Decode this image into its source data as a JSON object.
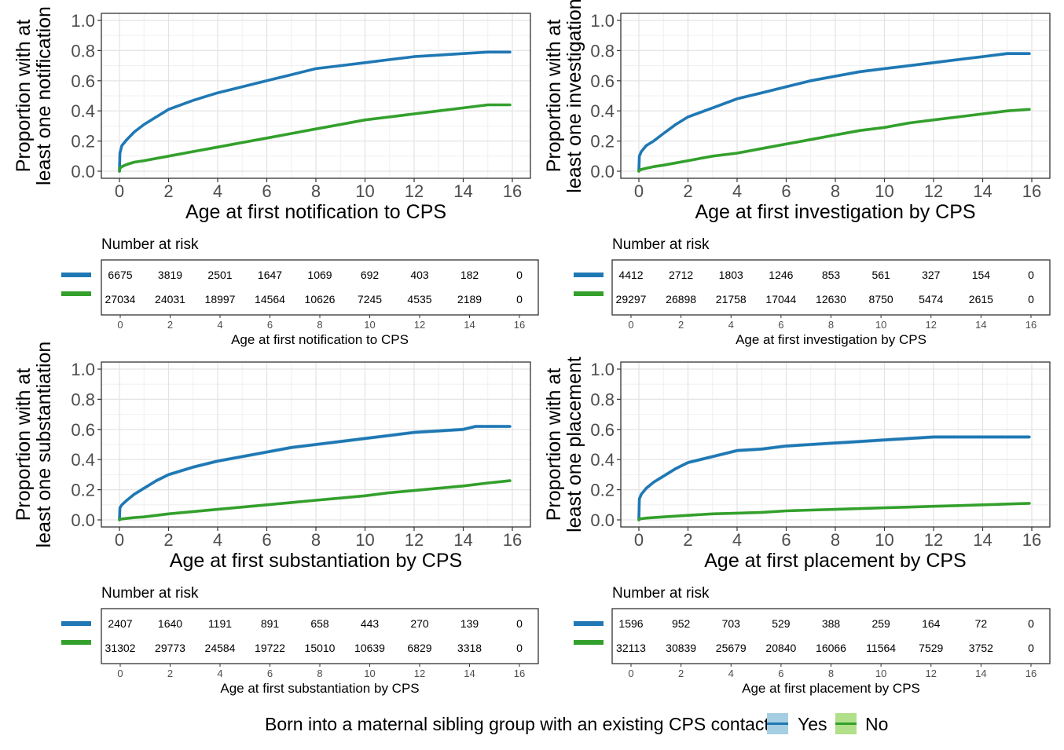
{
  "colors": {
    "yes": "#1f78b4",
    "yes_band": "#a6cee3",
    "no": "#33a02c",
    "no_band": "#b2df8a"
  },
  "legend": {
    "title": "Born into a maternal sibling group with an existing CPS contact",
    "yes": "Yes",
    "no": "No"
  },
  "chart_data": [
    {
      "type": "line",
      "xlabel": "Age at first notification to CPS",
      "ylabel": [
        "Proportion with at",
        "least one notification"
      ],
      "xlim": [
        0,
        16
      ],
      "ylim": [
        0,
        1
      ],
      "xticks": [
        0,
        2,
        4,
        6,
        8,
        10,
        12,
        14,
        16
      ],
      "yticks": [
        "0.0",
        "0.2",
        "0.4",
        "0.6",
        "0.8",
        "1.0"
      ],
      "series": [
        {
          "name": "Yes",
          "ci": 0.008,
          "x": [
            0,
            0.02,
            0.1,
            0.3,
            0.6,
            1,
            1.5,
            2,
            3,
            4,
            5,
            6,
            7,
            8,
            9,
            10,
            11,
            12,
            13,
            14,
            15,
            15.9
          ],
          "y": [
            0,
            0.12,
            0.17,
            0.21,
            0.26,
            0.31,
            0.36,
            0.41,
            0.47,
            0.52,
            0.56,
            0.6,
            0.64,
            0.68,
            0.7,
            0.72,
            0.74,
            0.76,
            0.77,
            0.78,
            0.79,
            0.79
          ]
        },
        {
          "name": "No",
          "ci": 0.005,
          "x": [
            0,
            0.02,
            0.1,
            0.3,
            0.6,
            1,
            2,
            3,
            4,
            5,
            6,
            7,
            8,
            9,
            10,
            11,
            12,
            13,
            14,
            15,
            15.9
          ],
          "y": [
            0,
            0.02,
            0.03,
            0.045,
            0.06,
            0.07,
            0.1,
            0.13,
            0.16,
            0.19,
            0.22,
            0.25,
            0.28,
            0.31,
            0.34,
            0.36,
            0.38,
            0.4,
            0.42,
            0.44,
            0.44
          ]
        }
      ],
      "risk_table": {
        "title": "Number at risk",
        "times": [
          0,
          2,
          4,
          6,
          8,
          10,
          12,
          14,
          16
        ],
        "yes": [
          6675,
          3819,
          2501,
          1647,
          1069,
          692,
          403,
          182,
          0
        ],
        "no": [
          27034,
          24031,
          18997,
          14564,
          10626,
          7245,
          4535,
          2189,
          0
        ],
        "xlabel": "Age at first notification to CPS"
      }
    },
    {
      "type": "line",
      "xlabel": "Age at first investigation by CPS",
      "ylabel": [
        "Proportion with at",
        "least one investigation"
      ],
      "xlim": [
        0,
        16
      ],
      "ylim": [
        0,
        1
      ],
      "xticks": [
        0,
        2,
        4,
        6,
        8,
        10,
        12,
        14,
        16
      ],
      "yticks": [
        "0.0",
        "0.2",
        "0.4",
        "0.6",
        "0.8",
        "1.0"
      ],
      "series": [
        {
          "name": "Yes",
          "ci": 0.01,
          "x": [
            0,
            0.02,
            0.1,
            0.3,
            0.6,
            1,
            1.5,
            2,
            3,
            4,
            5,
            6,
            7,
            8,
            9,
            10,
            11,
            12,
            13,
            14,
            15,
            15.9
          ],
          "y": [
            0,
            0.1,
            0.13,
            0.17,
            0.2,
            0.25,
            0.31,
            0.36,
            0.42,
            0.48,
            0.52,
            0.56,
            0.6,
            0.63,
            0.66,
            0.68,
            0.7,
            0.72,
            0.74,
            0.76,
            0.78,
            0.78
          ]
        },
        {
          "name": "No",
          "ci": 0.005,
          "x": [
            0,
            0.02,
            0.1,
            0.3,
            0.6,
            1,
            2,
            3,
            4,
            5,
            6,
            7,
            8,
            9,
            10,
            11,
            12,
            13,
            14,
            15,
            15.9
          ],
          "y": [
            0,
            0.005,
            0.012,
            0.02,
            0.03,
            0.04,
            0.07,
            0.1,
            0.12,
            0.15,
            0.18,
            0.21,
            0.24,
            0.27,
            0.29,
            0.32,
            0.34,
            0.36,
            0.38,
            0.4,
            0.41
          ]
        }
      ],
      "risk_table": {
        "title": "Number at risk",
        "times": [
          0,
          2,
          4,
          6,
          8,
          10,
          12,
          14,
          16
        ],
        "yes": [
          4412,
          2712,
          1803,
          1246,
          853,
          561,
          327,
          154,
          0
        ],
        "no": [
          29297,
          26898,
          21758,
          17044,
          12630,
          8750,
          5474,
          2615,
          0
        ],
        "xlabel": "Age at first investigation by CPS"
      }
    },
    {
      "type": "line",
      "xlabel": "Age at first substantiation by CPS",
      "ylabel": [
        "Proportion with at",
        "least one substantiation"
      ],
      "xlim": [
        0,
        16
      ],
      "ylim": [
        0,
        1
      ],
      "xticks": [
        0,
        2,
        4,
        6,
        8,
        10,
        12,
        14,
        16
      ],
      "yticks": [
        "0.0",
        "0.2",
        "0.4",
        "0.6",
        "0.8",
        "1.0"
      ],
      "series": [
        {
          "name": "Yes",
          "ci": 0.012,
          "x": [
            0,
            0.02,
            0.1,
            0.3,
            0.6,
            1,
            1.5,
            2,
            3,
            4,
            5,
            6,
            7,
            8,
            9,
            10,
            11,
            12,
            13,
            14,
            14.5,
            15,
            15.9
          ],
          "y": [
            0,
            0.08,
            0.1,
            0.13,
            0.17,
            0.21,
            0.26,
            0.3,
            0.35,
            0.39,
            0.42,
            0.45,
            0.48,
            0.5,
            0.52,
            0.54,
            0.56,
            0.58,
            0.59,
            0.6,
            0.62,
            0.62,
            0.62
          ]
        },
        {
          "name": "No",
          "ci": 0.004,
          "x": [
            0,
            0.02,
            0.1,
            0.3,
            0.6,
            1,
            2,
            3,
            4,
            5,
            6,
            7,
            8,
            9,
            10,
            11,
            12,
            13,
            14,
            15,
            15.9
          ],
          "y": [
            0,
            0.003,
            0.006,
            0.01,
            0.015,
            0.02,
            0.04,
            0.055,
            0.07,
            0.085,
            0.1,
            0.115,
            0.13,
            0.145,
            0.16,
            0.18,
            0.195,
            0.21,
            0.225,
            0.245,
            0.26
          ]
        }
      ],
      "risk_table": {
        "title": "Number at risk",
        "times": [
          0,
          2,
          4,
          6,
          8,
          10,
          12,
          14,
          16
        ],
        "yes": [
          2407,
          1640,
          1191,
          891,
          658,
          443,
          270,
          139,
          0
        ],
        "no": [
          31302,
          29773,
          24584,
          19722,
          15010,
          10639,
          6829,
          3318,
          0
        ],
        "xlabel": "Age at first substantiation by CPS"
      }
    },
    {
      "type": "line",
      "xlabel": "Age at first placement by CPS",
      "ylabel": [
        "Proportion with at",
        "least one placement"
      ],
      "xlim": [
        0,
        16
      ],
      "ylim": [
        0,
        1
      ],
      "xticks": [
        0,
        2,
        4,
        6,
        8,
        10,
        12,
        14,
        16
      ],
      "yticks": [
        "0.0",
        "0.2",
        "0.4",
        "0.6",
        "0.8",
        "1.0"
      ],
      "series": [
        {
          "name": "Yes",
          "ci": 0.012,
          "x": [
            0,
            0.02,
            0.1,
            0.3,
            0.6,
            1,
            1.5,
            2,
            3,
            4,
            5,
            6,
            7,
            8,
            9,
            10,
            11,
            12,
            13,
            14,
            15,
            15.9
          ],
          "y": [
            0,
            0.14,
            0.17,
            0.21,
            0.25,
            0.29,
            0.34,
            0.38,
            0.42,
            0.46,
            0.47,
            0.49,
            0.5,
            0.51,
            0.52,
            0.53,
            0.54,
            0.55,
            0.55,
            0.55,
            0.55,
            0.55
          ]
        },
        {
          "name": "No",
          "ci": 0.003,
          "x": [
            0,
            0.02,
            0.1,
            0.3,
            0.6,
            1,
            2,
            3,
            4,
            5,
            6,
            7,
            8,
            9,
            10,
            11,
            12,
            13,
            14,
            15,
            15.9
          ],
          "y": [
            0,
            0.005,
            0.008,
            0.012,
            0.015,
            0.02,
            0.03,
            0.04,
            0.045,
            0.05,
            0.06,
            0.065,
            0.07,
            0.075,
            0.08,
            0.085,
            0.09,
            0.095,
            0.1,
            0.105,
            0.11
          ]
        }
      ],
      "risk_table": {
        "title": "Number at risk",
        "times": [
          0,
          2,
          4,
          6,
          8,
          10,
          12,
          14,
          16
        ],
        "yes": [
          1596,
          952,
          703,
          529,
          388,
          259,
          164,
          72,
          0
        ],
        "no": [
          32113,
          30839,
          25679,
          20840,
          16066,
          11564,
          7529,
          3752,
          0
        ],
        "xlabel": "Age at first placement by CPS"
      }
    }
  ]
}
